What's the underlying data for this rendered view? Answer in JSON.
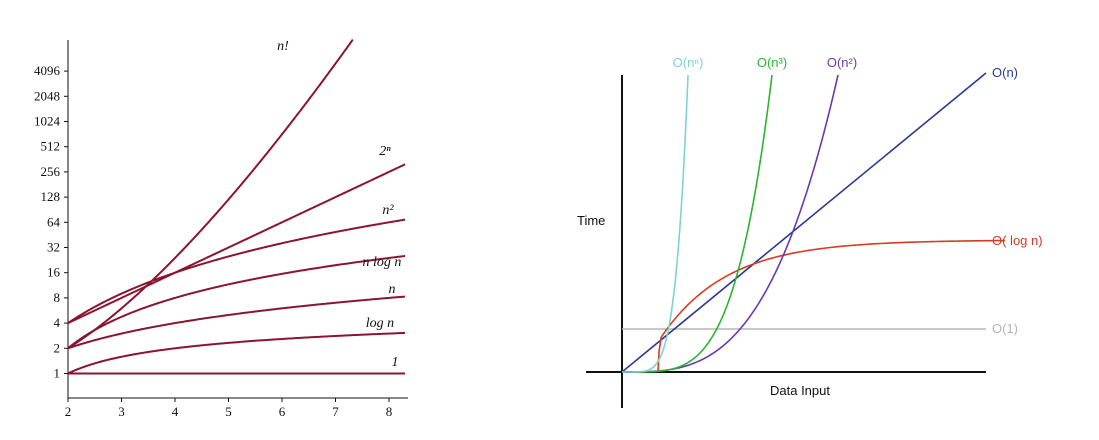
{
  "chart_data": [
    {
      "type": "line",
      "title": "",
      "xlabel": "",
      "ylabel": "",
      "scale": "log2",
      "xlim": [
        2,
        8.3
      ],
      "ylim": [
        0.75,
        9000
      ],
      "x_ticks": [
        "2",
        "3",
        "4",
        "5",
        "6",
        "7",
        "8"
      ],
      "y_ticks": [
        "1",
        "2",
        "4",
        "8",
        "16",
        "32",
        "64",
        "128",
        "256",
        "512",
        "1024",
        "2048",
        "4096"
      ],
      "color": "#8b1530",
      "series": [
        {
          "name": "n!",
          "label": "n!"
        },
        {
          "name": "2^n",
          "label": "2ⁿ"
        },
        {
          "name": "n^2",
          "label": "n²"
        },
        {
          "name": "n log n",
          "label": "n log n"
        },
        {
          "name": "n",
          "label": "n"
        },
        {
          "name": "log n",
          "label": "log n"
        },
        {
          "name": "1",
          "label": "1"
        }
      ]
    },
    {
      "type": "line",
      "title": "",
      "xlabel": "Data Input",
      "ylabel": "Time",
      "series": [
        {
          "name": "O(n^n)",
          "label": "O(nⁿ)",
          "color": "#7fd3d4"
        },
        {
          "name": "O(n^3)",
          "label": "O(n³)",
          "color": "#2bb533"
        },
        {
          "name": "O(n^2)",
          "label": "O(n²)",
          "color": "#6a3aad"
        },
        {
          "name": "O(n)",
          "label": "O(n)",
          "color": "#283a94"
        },
        {
          "name": "O(log n)",
          "label": "O( log n)",
          "color": "#d63a22"
        },
        {
          "name": "O(1)",
          "label": "O(1)",
          "color": "#b5b5b5"
        }
      ]
    }
  ]
}
